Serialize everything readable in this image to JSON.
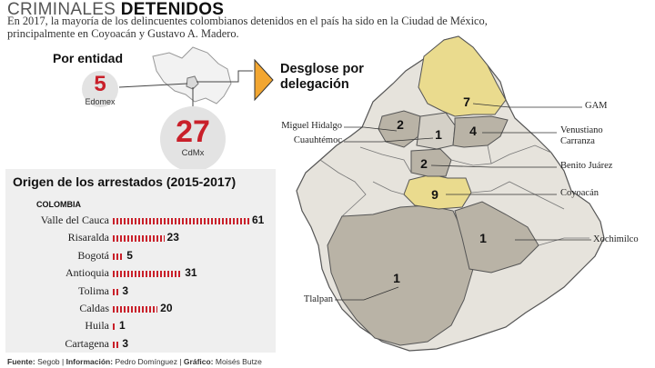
{
  "header": {
    "title_light": "CRIMINALES ",
    "title_bold": "DETENIDOS",
    "subtitle_line1": "En 2017, la mayoría de los delincuentes colombianos detenidos en el país ha sido en la Ciudad de México,",
    "subtitle_line2": "principalmente en Coyoacán y Gustavo A. Madero."
  },
  "por_entidad": {
    "title": "Por entidad",
    "edomex_value": "5",
    "edomex_label": "Edomex",
    "cdmx_value": "27",
    "cdmx_label": "CdMx"
  },
  "desglose": {
    "line1": "Desglose por",
    "line2": "delegación"
  },
  "delegaciones": [
    {
      "name": "GAM",
      "value": "7"
    },
    {
      "name": "Venustiano Carranza",
      "value": "4",
      "line1": "Venustiano",
      "line2": "Carranza"
    },
    {
      "name": "Miguel Hidalgo",
      "value": "2"
    },
    {
      "name": "Cuauhtémoc",
      "value": "1"
    },
    {
      "name": "Benito Juárez",
      "value": "2"
    },
    {
      "name": "Coyoacán",
      "value": "9"
    },
    {
      "name": "Xochimilco",
      "value": "1"
    },
    {
      "name": "Tlalpan",
      "value": "1"
    }
  ],
  "origen": {
    "title": "Origen de los arrestados (2015-2017)",
    "country": "COLOMBIA",
    "rows": [
      {
        "label": "Valle del Cauca",
        "value": 61
      },
      {
        "label": "Risaralda",
        "value": 23
      },
      {
        "label": "Bogotá",
        "value": 5
      },
      {
        "label": "Antioquia",
        "value": 31
      },
      {
        "label": "Tolima",
        "value": 3
      },
      {
        "label": "Caldas",
        "value": 20
      },
      {
        "label": "Huila",
        "value": 1
      },
      {
        "label": "Cartagena",
        "value": 3
      }
    ]
  },
  "footer": {
    "fuente_label": "Fuente:",
    "fuente": "Segob",
    "info_label": "Información:",
    "info": "Pedro Domínguez",
    "grafico_label": "Gráfico:",
    "grafico": "Moisés Butze"
  },
  "colors": {
    "accent_red": "#c9202a",
    "highlight_yellow": "#eadb8e",
    "dark_gray": "#b9b3a6",
    "light_gray": "#e6e3dc"
  }
}
